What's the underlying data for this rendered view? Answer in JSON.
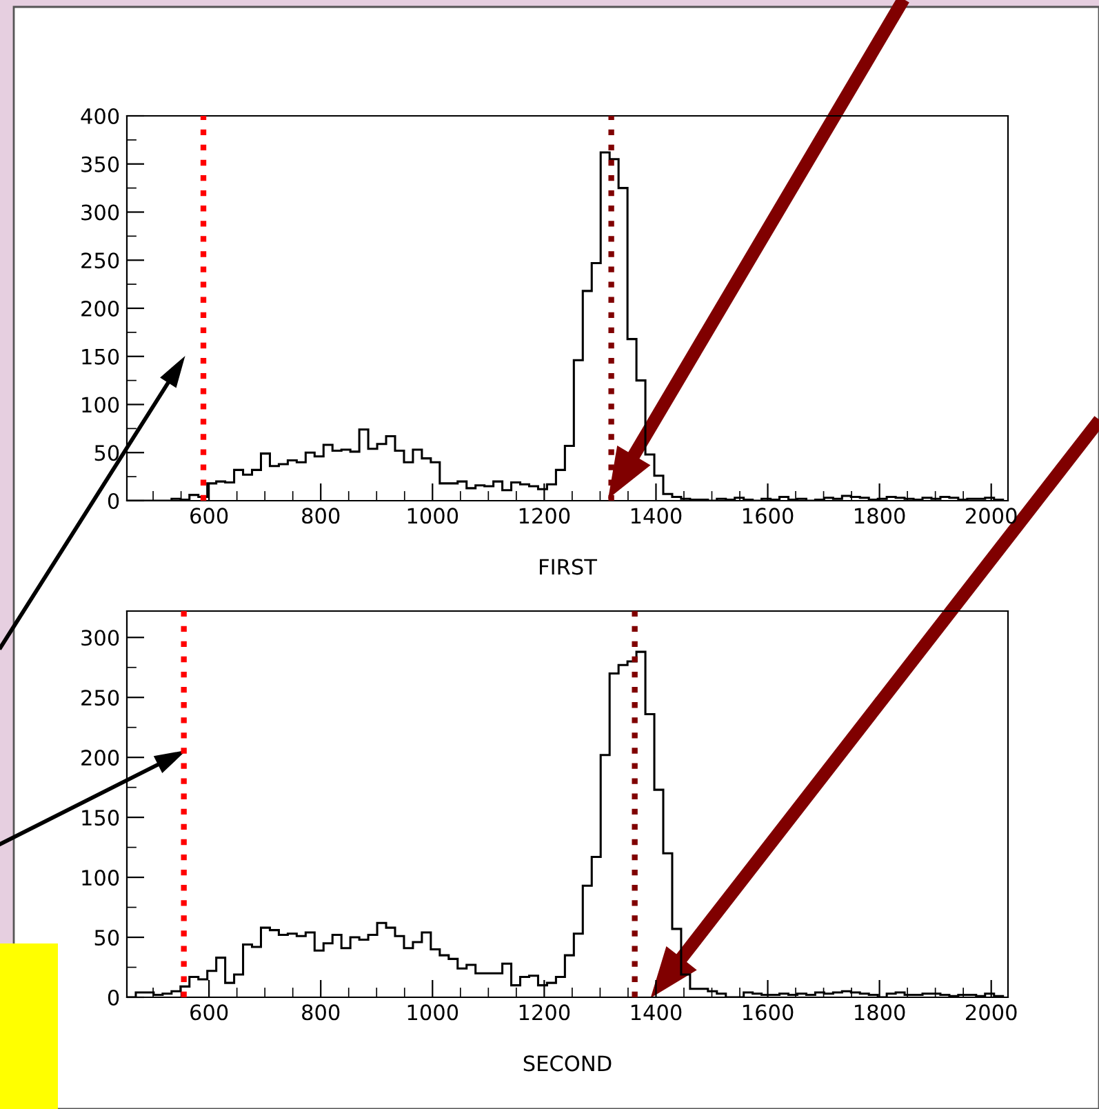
{
  "chart_data": [
    {
      "type": "histogram",
      "xlabel": "FIRST",
      "color": "#000000",
      "bins": [
        453,
        469,
        485,
        501,
        517,
        533,
        549,
        565,
        581,
        597,
        613,
        629,
        645,
        661,
        677,
        693,
        709,
        725,
        741,
        757,
        773,
        789,
        805,
        821,
        837,
        853,
        869,
        885,
        901,
        917,
        933,
        949,
        965,
        981,
        997,
        1013,
        1029,
        1045,
        1061,
        1077,
        1093,
        1109,
        1125,
        1141,
        1157,
        1173,
        1189,
        1205,
        1221,
        1237,
        1253,
        1269,
        1285,
        1301,
        1317,
        1333,
        1349,
        1365,
        1381,
        1397,
        1413,
        1429,
        1445,
        1461,
        1477,
        1493,
        1509,
        1525,
        1541,
        1557,
        1573,
        1589,
        1605,
        1621,
        1637,
        1653,
        1669,
        1685,
        1701,
        1717,
        1733,
        1749,
        1765,
        1781,
        1797,
        1813,
        1829,
        1845,
        1861,
        1877,
        1893,
        1909,
        1925,
        1941,
        1957,
        1973,
        1989,
        2005,
        2021
      ],
      "values": [
        0,
        0,
        0,
        0,
        0,
        2,
        1,
        6,
        4,
        18,
        20,
        19,
        32,
        27,
        32,
        49,
        36,
        38,
        42,
        40,
        50,
        46,
        58,
        52,
        53,
        51,
        74,
        54,
        59,
        67,
        52,
        40,
        53,
        44,
        40,
        18,
        18,
        20,
        13,
        16,
        15,
        20,
        11,
        19,
        17,
        15,
        12,
        17,
        32,
        57,
        146,
        218,
        247,
        362,
        355,
        325,
        168,
        125,
        48,
        26,
        7,
        4,
        2,
        1,
        1,
        0,
        2,
        1,
        3,
        1,
        0,
        2,
        1,
        4,
        1,
        2,
        0,
        1,
        3,
        2,
        5,
        4,
        3,
        1,
        2,
        4,
        3,
        2,
        1,
        3,
        2,
        4,
        3,
        1,
        2,
        2,
        3,
        1
      ],
      "xlim": [
        453,
        2030
      ],
      "ylim": [
        0,
        400
      ],
      "xticks": [
        600,
        800,
        1000,
        1200,
        1400,
        1600,
        1800,
        2000
      ],
      "yticks": [
        0,
        50,
        100,
        150,
        200,
        250,
        300,
        350,
        400
      ],
      "ref_lines": [
        {
          "axis": "x",
          "value": 590,
          "color": "#ff0000",
          "line_style": "dotted"
        },
        {
          "axis": "x",
          "value": 1320,
          "color": "#800000",
          "line_style": "dotted"
        }
      ]
    },
    {
      "type": "histogram",
      "xlabel": "SECOND",
      "color": "#000000",
      "bins": [
        453,
        469,
        485,
        501,
        517,
        533,
        549,
        565,
        581,
        597,
        613,
        629,
        645,
        661,
        677,
        693,
        709,
        725,
        741,
        757,
        773,
        789,
        805,
        821,
        837,
        853,
        869,
        885,
        901,
        917,
        933,
        949,
        965,
        981,
        997,
        1013,
        1029,
        1045,
        1061,
        1077,
        1093,
        1109,
        1125,
        1141,
        1157,
        1173,
        1189,
        1205,
        1221,
        1237,
        1253,
        1269,
        1285,
        1301,
        1317,
        1333,
        1349,
        1365,
        1381,
        1397,
        1413,
        1429,
        1445,
        1461,
        1477,
        1493,
        1509,
        1525,
        1541,
        1557,
        1573,
        1589,
        1605,
        1621,
        1637,
        1653,
        1669,
        1685,
        1701,
        1717,
        1733,
        1749,
        1765,
        1781,
        1797,
        1813,
        1829,
        1845,
        1861,
        1877,
        1893,
        1909,
        1925,
        1941,
        1957,
        1973,
        1989,
        2005,
        2021
      ],
      "values": [
        0,
        4,
        4,
        2,
        3,
        5,
        9,
        17,
        15,
        22,
        33,
        12,
        19,
        44,
        42,
        58,
        56,
        52,
        53,
        51,
        54,
        39,
        45,
        52,
        41,
        50,
        48,
        52,
        62,
        58,
        51,
        41,
        46,
        54,
        40,
        35,
        32,
        24,
        27,
        20,
        20,
        20,
        28,
        10,
        17,
        18,
        10,
        12,
        17,
        35,
        53,
        93,
        117,
        202,
        270,
        277,
        280,
        288,
        236,
        173,
        120,
        57,
        19,
        7,
        7,
        5,
        3,
        0,
        0,
        4,
        3,
        2,
        2,
        3,
        2,
        3,
        2,
        4,
        3,
        4,
        5,
        4,
        3,
        2,
        0,
        3,
        4,
        2,
        2,
        3,
        3,
        2,
        1,
        2,
        2,
        1,
        3,
        1
      ],
      "xlim": [
        453,
        2030
      ],
      "ylim": [
        0,
        322
      ],
      "xticks": [
        600,
        800,
        1000,
        1200,
        1400,
        1600,
        1800,
        2000
      ],
      "yticks": [
        0,
        50,
        100,
        150,
        200,
        250,
        300
      ],
      "ref_lines": [
        {
          "axis": "x",
          "value": 555,
          "color": "#ff0000",
          "line_style": "dotted"
        },
        {
          "axis": "x",
          "value": 1362,
          "color": "#800000",
          "line_style": "dotted"
        }
      ]
    }
  ]
}
